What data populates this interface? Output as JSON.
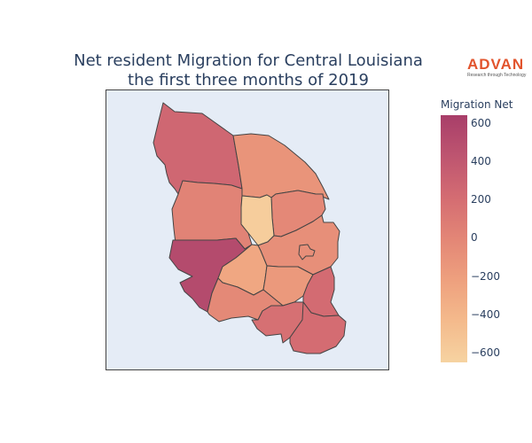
{
  "title": {
    "line1": "Net resident Migration for Central Louisiana",
    "line2": "the first three months of 2019"
  },
  "logo": {
    "word": "ADVAN",
    "tagline": "Research through Technology"
  },
  "colorbar": {
    "title": "Migration Net",
    "range": [
      -650,
      640
    ],
    "ticks": [
      "600",
      "400",
      "200",
      "0",
      "−200",
      "−400",
      "−600"
    ],
    "colorscale": [
      "#f6d3a1",
      "#f4ba8c",
      "#eea07e",
      "#e38676",
      "#d46c72",
      "#be5570",
      "#a83e69"
    ]
  },
  "map": {
    "background": "#e5ecf6",
    "border_color": "#444444",
    "parish_values": {
      "northwest": 260,
      "north_center": -120,
      "north_east": -20,
      "west": 20,
      "center_small": -600,
      "southwest": 520,
      "east_center": -80,
      "city_pocket": -80,
      "south_center_west": -280,
      "south_center_east": -160,
      "southwest_lower": -30,
      "east_lower": 220,
      "south_lower": 180,
      "south_far": 210
    }
  }
}
